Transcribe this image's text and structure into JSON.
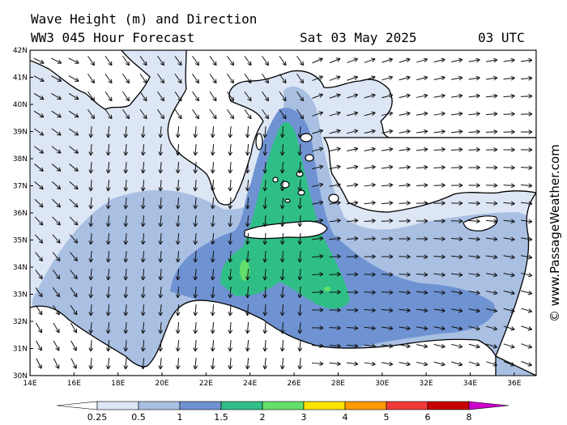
{
  "header": {
    "title_line1": "Wave Height (m) and Direction",
    "title_line2": "WW3 045 Hour Forecast",
    "date": "Sat 03 May 2025",
    "time": "03 UTC"
  },
  "watermark": "© www.PassageWeather.com",
  "axes": {
    "lat_labels": [
      "42N",
      "41N",
      "40N",
      "39N",
      "38N",
      "37N",
      "36N",
      "35N",
      "34N",
      "33N",
      "32N",
      "31N",
      "30N"
    ],
    "lon_labels": [
      "14E",
      "16E",
      "18E",
      "20E",
      "22E",
      "24E",
      "26E",
      "28E",
      "30E",
      "32E",
      "34E",
      "36E"
    ],
    "lat_range": [
      30,
      42
    ],
    "lon_range": [
      14,
      37
    ]
  },
  "legend": {
    "tick_labels": [
      "0.25",
      "0.5",
      "1",
      "1.5",
      "2",
      "3",
      "4",
      "5",
      "6",
      "8"
    ],
    "colors": [
      "#ffffff",
      "#dde6f4",
      "#a9c0e3",
      "#6f93d2",
      "#2fbf86",
      "#63e06a",
      "#fce400",
      "#ff9a00",
      "#f23a3a",
      "#c80000",
      "#cc00cc"
    ]
  },
  "colors": {
    "sea_low": "#dde6f4",
    "sea_mid": "#a9c0e3",
    "sea_high": "#6f93d2",
    "wave_2m": "#2fbf86",
    "wave_3m": "#63e06a",
    "land": "#ffffff"
  }
}
